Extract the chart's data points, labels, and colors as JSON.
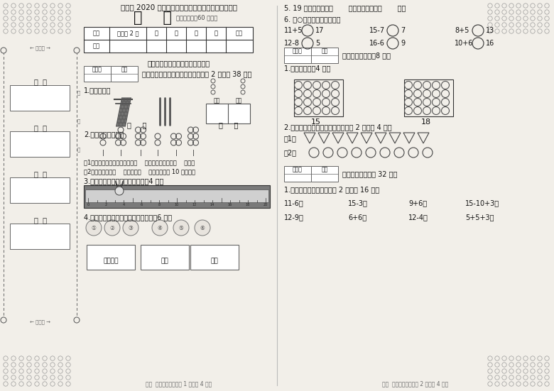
{
  "bg_color": "#e8e4de",
  "paper_color": "#f2efe9",
  "title1": "合山市 2020 年秋季学期小学一年级期末教学质量调研",
  "title2": "数    学",
  "title2_sub": "（考试时间：60 分钟）",
  "table_headers": [
    "题号",
    "卷面分 2 分",
    "一",
    "二",
    "三",
    "四",
    "总分"
  ],
  "table_row": [
    "得分",
    "",
    "",
    "",
    "",
    "",
    ""
  ],
  "instruction": "请听老师读题，读一题，做一题。",
  "section1_label": "一、听老师读题，仔细做题。（每空 2 分，共 38 分）",
  "q1": "1.看图写数。",
  "q2": "2.先数数，再填空。",
  "q2_sub1": "（1）从左数，气球最多的是第（    ）束，最少的是第（    ）束。",
  "q2_sub2": "（2）从左数，第（    ）束和第（    ）束合起来有 10 个气球。",
  "q3": "3.把小兔能跳到的地方圈出来。（4 分）",
  "q4": "4.分一分，把序号填在相应的框里。（6 分）",
  "q4_cats": [
    "交通工具",
    "动物",
    "蔬菜"
  ],
  "q5": "5. 19 的前一个数是（       ），后一个数是（       ）。",
  "q6": "6. 在○里填上＞、＜或＝。",
  "q6_r1_lhs": [
    "11+5",
    "15-7",
    "8+5"
  ],
  "q6_r1_rhs": [
    "17",
    "7",
    "13"
  ],
  "q6_r2_lhs": [
    "12-8",
    "16-6",
    "10+6"
  ],
  "q6_r2_rhs": [
    "5",
    "9",
    "16"
  ],
  "section2_label": "二、动手操作。（8 分）",
  "s2q1": "1.看数涂色。（4 分）",
  "s2q1_nums": [
    "15",
    "18"
  ],
  "s2q2": "2.按自己喜欢的规律涂颜色。（每题 2 分，共 4 分）",
  "section3_label": "三、我会算。（共 32 分）",
  "s3q1": "1.直接写出得数。（每小题 2 分，共 16 分）",
  "s3_calcs_row1": [
    "11-6＝",
    "15-3＝",
    "9+6＝",
    "15-10+3＝"
  ],
  "s3_calcs_row2": [
    "12-9＝",
    "6+6＝",
    "12-4＝",
    "5+5+3＝"
  ],
  "footer1": "合山  一年级数学上册第 1 页（共 4 页）",
  "footer2": "合山  一年级数学上册第 2 页（共 4 页）",
  "left_labels": [
    "学  校",
    "班  别",
    "姓  名",
    "座  号"
  ],
  "reviewer_label": "评卷人",
  "score_label": "得分",
  "dots_color": "#999999",
  "bind_color": "#666666"
}
